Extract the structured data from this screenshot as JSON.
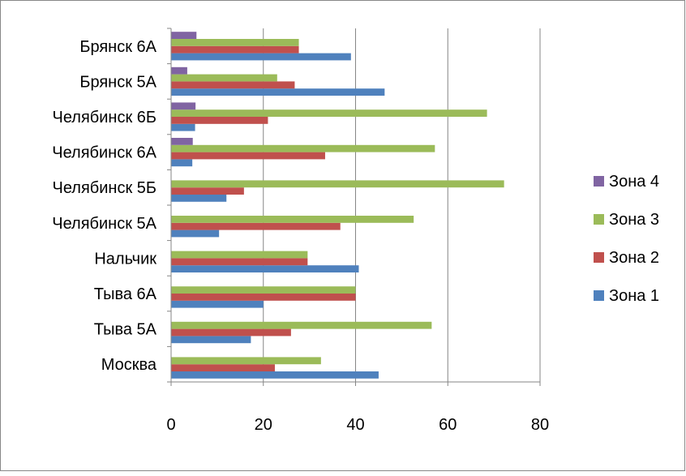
{
  "chart_data": {
    "type": "bar",
    "orientation": "horizontal",
    "title": "",
    "xlabel": "",
    "ylabel": "",
    "xlim": [
      0,
      80
    ],
    "x_ticks": [
      0,
      20,
      40,
      60,
      80
    ],
    "grid": "vertical",
    "legend_position": "right",
    "categories": [
      "Москва",
      "Тыва 5А",
      "Тыва 6А",
      "Нальчик",
      "Челябинск 5А",
      "Челябинск 5Б",
      "Челябинск 6А",
      "Челябинск 6Б",
      "Брянск 5А",
      "Брянск 6А"
    ],
    "series": [
      {
        "name": "Зона 1",
        "color": "#4f81bd",
        "values": [
          45,
          17.3,
          20,
          40.7,
          10.4,
          12,
          4.6,
          5.2,
          46.3,
          39
        ]
      },
      {
        "name": "Зона 2",
        "color": "#c0504d",
        "values": [
          22.5,
          26,
          40,
          29.6,
          36.7,
          15.8,
          33.4,
          21,
          26.8,
          27.7
        ]
      },
      {
        "name": "Зона 3",
        "color": "#9bbb59",
        "values": [
          32.5,
          56.5,
          40,
          29.6,
          52.6,
          72.2,
          57.2,
          68.5,
          23,
          27.7
        ]
      },
      {
        "name": "Зона 4",
        "color": "#8064a2",
        "values": [
          0,
          0,
          0,
          0,
          0,
          0,
          4.7,
          5.3,
          3.5,
          5.5
        ]
      }
    ]
  }
}
